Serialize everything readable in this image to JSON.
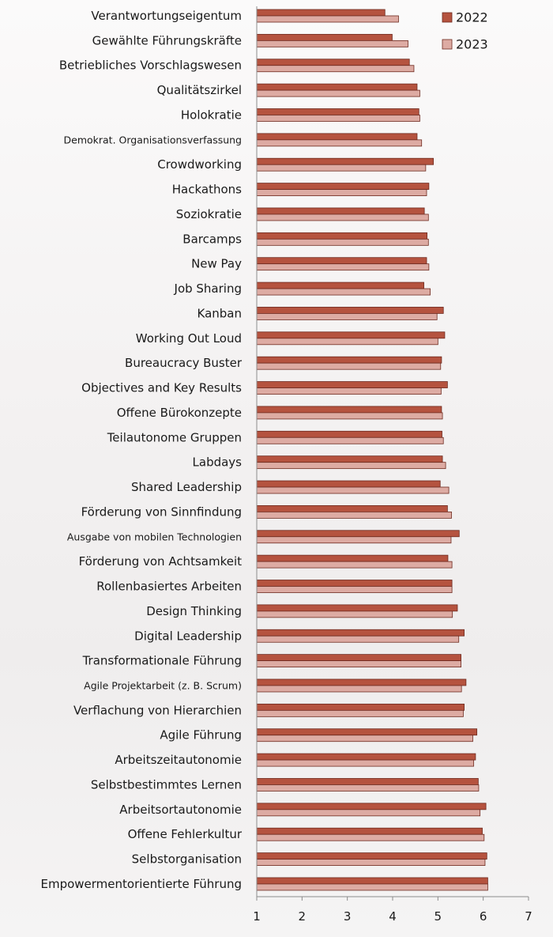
{
  "chart_data": {
    "type": "bar",
    "orientation": "horizontal",
    "categories": [
      "Verantwortungseigentum",
      "Gewählte Führungskräfte",
      "Betriebliches Vorschlagswesen",
      "Qualitätszirkel",
      "Holokratie",
      "Demokrat. Organisationsverfassung",
      "Crowdworking",
      "Hackathons",
      "Soziokratie",
      "Barcamps",
      "New Pay",
      "Job Sharing",
      "Kanban",
      "Working Out Loud",
      "Bureaucracy Buster",
      "Objectives and Key Results",
      "Offene Bürokonzepte",
      "Teilautonome Gruppen",
      "Labdays",
      "Shared Leadership",
      "Förderung von Sinnfindung",
      "Ausgabe von mobilen Technologien",
      "Förderung von Achtsamkeit",
      "Rollenbasiertes Arbeiten",
      "Design Thinking",
      "Digital Leadership",
      "Transformationale Führung",
      "Agile Projektarbeit (z. B. Scrum)",
      "Verflachung von Hierarchien",
      "Agile Führung",
      "Arbeitszeitautonomie",
      "Selbstbestimmtes Lernen",
      "Arbeitsortautonomie",
      "Offene Fehlerkultur",
      "Selbstorganisation",
      "Empowermentorientierte Führung"
    ],
    "series": [
      {
        "name": "2022",
        "color": "#b5533f",
        "values": [
          3.83,
          3.99,
          4.37,
          4.54,
          4.58,
          4.54,
          4.9,
          4.8,
          4.7,
          4.76,
          4.75,
          4.69,
          5.12,
          5.15,
          5.08,
          5.21,
          5.08,
          5.09,
          5.1,
          5.05,
          5.21,
          5.47,
          5.22,
          5.31,
          5.43,
          5.58,
          5.51,
          5.62,
          5.58,
          5.86,
          5.83,
          5.89,
          6.06,
          5.98,
          6.08,
          6.1
        ]
      },
      {
        "name": "2023",
        "color": "#ddaba3",
        "values": [
          4.13,
          4.34,
          4.47,
          4.6,
          4.6,
          4.64,
          4.73,
          4.75,
          4.79,
          4.79,
          4.8,
          4.83,
          4.98,
          5.0,
          5.06,
          5.07,
          5.1,
          5.12,
          5.17,
          5.24,
          5.3,
          5.29,
          5.31,
          5.31,
          5.32,
          5.46,
          5.51,
          5.52,
          5.56,
          5.77,
          5.79,
          5.9,
          5.93,
          6.02,
          6.04,
          6.1
        ]
      }
    ],
    "x_ticks": [
      "1",
      "2",
      "3",
      "4",
      "5",
      "6",
      "7"
    ],
    "xlim": [
      1,
      7
    ],
    "grid": false,
    "legend_position": "top-right",
    "title": "",
    "xlabel": "",
    "ylabel": ""
  }
}
